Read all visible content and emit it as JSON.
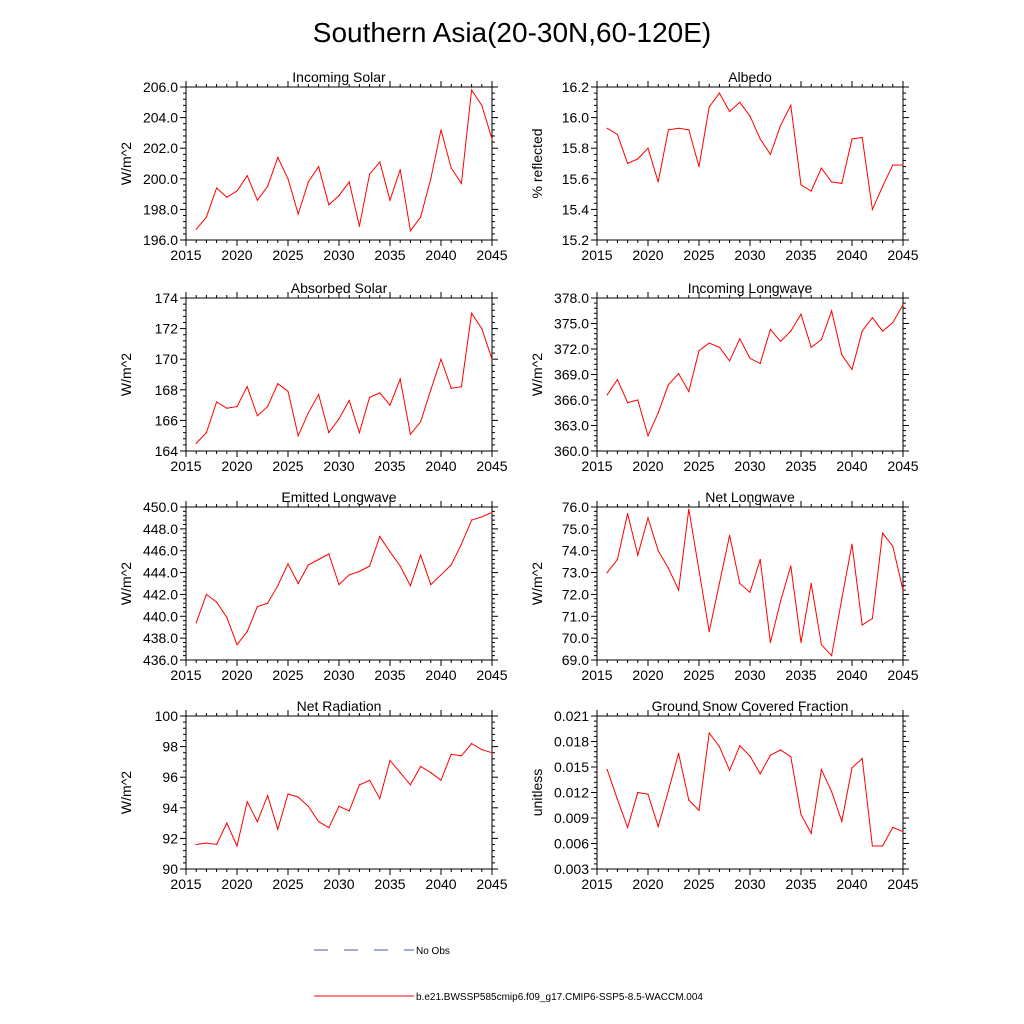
{
  "page_title": "Southern Asia(20-30N,60-120E)",
  "series_color": "#ff0000",
  "obs_color": "#4a5aa8",
  "legend": {
    "obs_label": "No Obs",
    "model_label": "b.e21.BWSSP585cmip6.f09_g17.CMIP6-SSP5-8.5-WACCM.004"
  },
  "x_axis": {
    "xlim": [
      2015,
      2045
    ],
    "ticks": [
      2015,
      2020,
      2025,
      2030,
      2035,
      2040,
      2045
    ],
    "tick_labels": [
      "2015",
      "2020",
      "2025",
      "2030",
      "2035",
      "2040",
      "2045"
    ]
  },
  "chart_data": [
    {
      "type": "line",
      "title": "Incoming Solar",
      "ylabel": "W/m^2",
      "ylim": [
        196.0,
        206.0
      ],
      "yticks": [
        196,
        198,
        200,
        202,
        204,
        206
      ],
      "ytick_labels": [
        "196.0",
        "198.0",
        "200.0",
        "202.0",
        "204.0",
        "206.0"
      ],
      "x": [
        2016,
        2017,
        2018,
        2019,
        2020,
        2021,
        2022,
        2023,
        2024,
        2025,
        2026,
        2027,
        2028,
        2029,
        2030,
        2031,
        2032,
        2033,
        2034,
        2035,
        2036,
        2037,
        2038,
        2039,
        2040,
        2041,
        2042,
        2043,
        2044,
        2045
      ],
      "values": [
        196.7,
        197.5,
        199.4,
        198.8,
        199.2,
        200.2,
        198.6,
        199.5,
        201.4,
        200.0,
        197.7,
        199.8,
        200.8,
        198.3,
        198.9,
        199.8,
        196.9,
        200.3,
        201.1,
        198.6,
        200.6,
        196.6,
        197.5,
        200.0,
        203.2,
        200.7,
        199.7,
        205.8,
        204.8,
        202.6
      ]
    },
    {
      "type": "line",
      "title": "Albedo",
      "ylabel": "% reflected",
      "ylim": [
        15.2,
        16.2
      ],
      "yticks": [
        15.2,
        15.4,
        15.6,
        15.8,
        16.0,
        16.2
      ],
      "ytick_labels": [
        "15.2",
        "15.4",
        "15.6",
        "15.8",
        "16.0",
        "16.2"
      ],
      "x": [
        2016,
        2017,
        2018,
        2019,
        2020,
        2021,
        2022,
        2023,
        2024,
        2025,
        2026,
        2027,
        2028,
        2029,
        2030,
        2031,
        2032,
        2033,
        2034,
        2035,
        2036,
        2037,
        2038,
        2039,
        2040,
        2041,
        2042,
        2043,
        2044,
        2045
      ],
      "values": [
        15.93,
        15.89,
        15.7,
        15.73,
        15.8,
        15.58,
        15.92,
        15.93,
        15.92,
        15.68,
        16.07,
        16.16,
        16.04,
        16.1,
        16.01,
        15.86,
        15.76,
        15.95,
        16.08,
        15.56,
        15.52,
        15.67,
        15.58,
        15.57,
        15.86,
        15.87,
        15.4,
        15.55,
        15.69,
        15.69
      ]
    },
    {
      "type": "line",
      "title": "Absorbed Solar",
      "ylabel": "W/m^2",
      "ylim": [
        164,
        174
      ],
      "yticks": [
        164,
        166,
        168,
        170,
        172,
        174
      ],
      "ytick_labels": [
        "164",
        "166",
        "168",
        "170",
        "172",
        "174"
      ],
      "x": [
        2016,
        2017,
        2018,
        2019,
        2020,
        2021,
        2022,
        2023,
        2024,
        2025,
        2026,
        2027,
        2028,
        2029,
        2030,
        2031,
        2032,
        2033,
        2034,
        2035,
        2036,
        2037,
        2038,
        2039,
        2040,
        2041,
        2042,
        2043,
        2044,
        2045
      ],
      "values": [
        164.5,
        165.2,
        167.2,
        166.8,
        166.9,
        168.2,
        166.3,
        166.9,
        168.4,
        167.9,
        165.0,
        166.5,
        167.7,
        165.2,
        166.1,
        167.3,
        165.2,
        167.5,
        167.8,
        167.0,
        168.7,
        165.1,
        165.9,
        168.0,
        170.0,
        168.1,
        168.2,
        173.0,
        172.0,
        170.0
      ]
    },
    {
      "type": "line",
      "title": "Incoming Longwave",
      "ylabel": "W/m^2",
      "ylim": [
        360.0,
        378.0
      ],
      "yticks": [
        360,
        363,
        366,
        369,
        372,
        375,
        378
      ],
      "ytick_labels": [
        "360.0",
        "363.0",
        "366.0",
        "369.0",
        "372.0",
        "375.0",
        "378.0"
      ],
      "x": [
        2016,
        2017,
        2018,
        2019,
        2020,
        2021,
        2022,
        2023,
        2024,
        2025,
        2026,
        2027,
        2028,
        2029,
        2030,
        2031,
        2032,
        2033,
        2034,
        2035,
        2036,
        2037,
        2038,
        2039,
        2040,
        2041,
        2042,
        2043,
        2044,
        2045
      ],
      "values": [
        366.6,
        368.4,
        365.7,
        366.0,
        361.8,
        364.5,
        367.8,
        369.1,
        367.0,
        371.8,
        372.7,
        372.2,
        370.6,
        373.2,
        370.9,
        370.3,
        374.3,
        372.9,
        374.1,
        376.1,
        372.2,
        373.1,
        376.5,
        371.3,
        369.6,
        374.1,
        375.7,
        374.1,
        375.1,
        377.2
      ]
    },
    {
      "type": "line",
      "title": "Emitted Longwave",
      "ylabel": "W/m^2",
      "ylim": [
        436.0,
        450.0
      ],
      "yticks": [
        436,
        438,
        440,
        442,
        444,
        446,
        448,
        450
      ],
      "ytick_labels": [
        "436.0",
        "438.0",
        "440.0",
        "442.0",
        "444.0",
        "446.0",
        "448.0",
        "450.0"
      ],
      "x": [
        2016,
        2017,
        2018,
        2019,
        2020,
        2021,
        2022,
        2023,
        2024,
        2025,
        2026,
        2027,
        2028,
        2029,
        2030,
        2031,
        2032,
        2033,
        2034,
        2035,
        2036,
        2037,
        2038,
        2039,
        2040,
        2041,
        2042,
        2043,
        2044,
        2045
      ],
      "values": [
        439.4,
        442.0,
        441.3,
        439.9,
        437.4,
        438.6,
        440.9,
        441.2,
        442.8,
        444.8,
        443.0,
        444.7,
        445.2,
        445.7,
        442.9,
        443.8,
        444.1,
        444.6,
        447.3,
        445.9,
        444.6,
        442.8,
        445.6,
        442.9,
        443.8,
        444.7,
        446.6,
        448.8,
        449.1,
        449.5
      ]
    },
    {
      "type": "line",
      "title": "Net Longwave",
      "ylabel": "W/m^2",
      "ylim": [
        69.0,
        76.0
      ],
      "yticks": [
        69,
        70,
        71,
        72,
        73,
        74,
        75,
        76
      ],
      "ytick_labels": [
        "69.0",
        "70.0",
        "71.0",
        "72.0",
        "73.0",
        "74.0",
        "75.0",
        "76.0"
      ],
      "x": [
        2016,
        2017,
        2018,
        2019,
        2020,
        2021,
        2022,
        2023,
        2024,
        2025,
        2026,
        2027,
        2028,
        2029,
        2030,
        2031,
        2032,
        2033,
        2034,
        2035,
        2036,
        2037,
        2038,
        2039,
        2040,
        2041,
        2042,
        2043,
        2044,
        2045
      ],
      "values": [
        73.0,
        73.6,
        75.7,
        73.8,
        75.5,
        74.0,
        73.2,
        72.2,
        75.9,
        73.1,
        70.3,
        72.5,
        74.7,
        72.5,
        72.1,
        73.6,
        69.8,
        71.7,
        73.3,
        69.8,
        72.5,
        69.7,
        69.2,
        71.8,
        74.3,
        70.6,
        70.9,
        74.8,
        74.2,
        72.2
      ]
    },
    {
      "type": "line",
      "title": "Net Radiation",
      "ylabel": "W/m^2",
      "ylim": [
        90,
        100
      ],
      "yticks": [
        90,
        92,
        94,
        96,
        98,
        100
      ],
      "ytick_labels": [
        "90",
        "92",
        "94",
        "96",
        "98",
        "100"
      ],
      "x": [
        2016,
        2017,
        2018,
        2019,
        2020,
        2021,
        2022,
        2023,
        2024,
        2025,
        2026,
        2027,
        2028,
        2029,
        2030,
        2031,
        2032,
        2033,
        2034,
        2035,
        2036,
        2037,
        2038,
        2039,
        2040,
        2041,
        2042,
        2043,
        2044,
        2045
      ],
      "values": [
        91.6,
        91.7,
        91.6,
        93.0,
        91.5,
        94.4,
        93.1,
        94.8,
        92.6,
        94.9,
        94.7,
        94.1,
        93.1,
        92.7,
        94.1,
        93.8,
        95.5,
        95.8,
        94.6,
        97.1,
        96.3,
        95.5,
        96.7,
        96.3,
        95.8,
        97.5,
        97.4,
        98.2,
        97.8,
        97.6
      ]
    },
    {
      "type": "line",
      "title": "Ground Snow Covered Fraction",
      "ylabel": "unitless",
      "ylim": [
        0.003,
        0.021
      ],
      "yticks": [
        0.003,
        0.006,
        0.009,
        0.012,
        0.015,
        0.018,
        0.021
      ],
      "ytick_labels": [
        "0.003",
        "0.006",
        "0.009",
        "0.012",
        "0.015",
        "0.018",
        "0.021"
      ],
      "x": [
        2016,
        2017,
        2018,
        2019,
        2020,
        2021,
        2022,
        2023,
        2024,
        2025,
        2026,
        2027,
        2028,
        2029,
        2030,
        2031,
        2032,
        2033,
        2034,
        2035,
        2036,
        2037,
        2038,
        2039,
        2040,
        2041,
        2042,
        2043,
        2044,
        2045
      ],
      "values": [
        0.0147,
        0.0112,
        0.0079,
        0.012,
        0.0118,
        0.008,
        0.0122,
        0.0166,
        0.0111,
        0.0099,
        0.019,
        0.0174,
        0.0146,
        0.0175,
        0.0163,
        0.0142,
        0.0164,
        0.017,
        0.0162,
        0.0094,
        0.0072,
        0.0147,
        0.0121,
        0.0086,
        0.0149,
        0.016,
        0.0057,
        0.0057,
        0.0079,
        0.0074
      ]
    }
  ]
}
